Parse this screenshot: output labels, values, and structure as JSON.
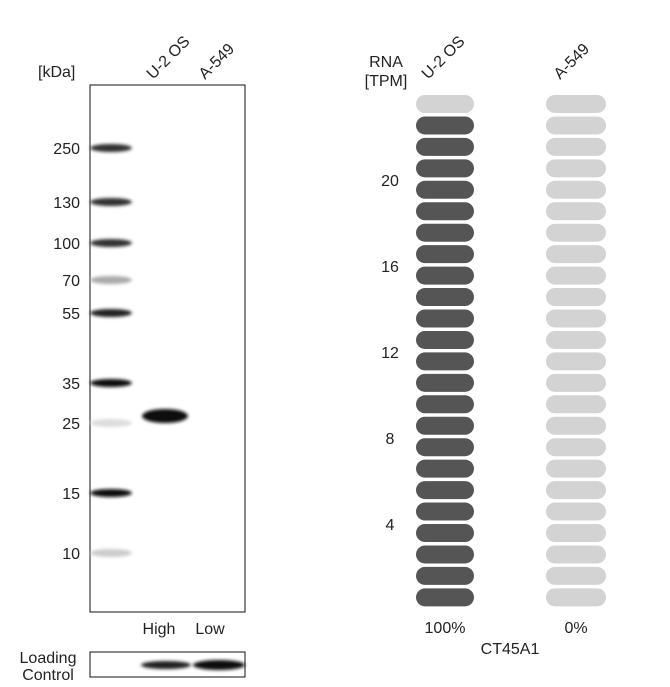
{
  "blot": {
    "unit_label": "[kDa]",
    "lanes": [
      "U-2 OS",
      "A-549"
    ],
    "markers": [
      "250",
      "130",
      "100",
      "70",
      "55",
      "35",
      "25",
      "15",
      "10"
    ],
    "levels": [
      "High",
      "Low"
    ],
    "loading_control": [
      "Loading",
      "Control"
    ]
  },
  "rna": {
    "axis_label": [
      "RNA",
      "[TPM]"
    ],
    "lanes": [
      "U-2 OS",
      "A-549"
    ],
    "ticks": [
      "20",
      "16",
      "12",
      "8",
      "4"
    ],
    "percentages": [
      "100%",
      "0%"
    ],
    "gene": "CT45A1"
  }
}
